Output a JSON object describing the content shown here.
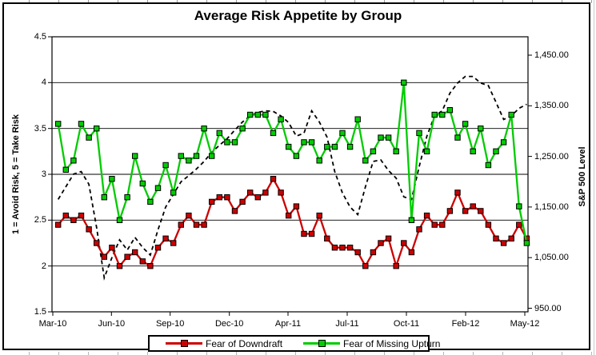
{
  "title": "Average Risk Appetite by Group",
  "left_axis": {
    "title": "1 = Avoid Risk, 5 = Take Risk",
    "tick_labels": [
      "4.5",
      "4",
      "3.5",
      "3",
      "2.5",
      "2",
      "1.5"
    ]
  },
  "right_axis": {
    "title": "S&P 500 Level",
    "tick_labels": [
      "1,450.00",
      "1,350.00",
      "1,250.00",
      "1,150.00",
      "1,050.00",
      "950.00"
    ]
  },
  "x_axis": {
    "tick_labels": [
      "Mar-10",
      "Jun-10",
      "Sep-10",
      "Dec-10",
      "Apr-11",
      "Jul-11",
      "Oct-11",
      "Feb-12",
      "May-12"
    ]
  },
  "legend": {
    "items": [
      {
        "label": "Fear of Downdraft",
        "color": "#CC0000"
      },
      {
        "label": "Fear of Missing Upturn",
        "color": "#00CC00"
      }
    ]
  },
  "colors": {
    "downdraft": "#CC0000",
    "upturn": "#00CC00",
    "sp500": "#000000",
    "grid": "#000000"
  },
  "chart_data": {
    "type": "line",
    "title": "Average Risk Appetite by Group",
    "x_tick_labels": [
      "Mar-10",
      "Jun-10",
      "Sep-10",
      "Dec-10",
      "Apr-11",
      "Jul-11",
      "Oct-11",
      "Feb-12",
      "May-12"
    ],
    "left_ylabel": "1 = Avoid Risk, 5 = Take Risk",
    "right_ylabel": "S&P 500 Level",
    "left_ylim": [
      1.5,
      4.5
    ],
    "right_ylim": [
      950,
      1450
    ],
    "grid": "horizontal",
    "legend_position": "bottom",
    "series": [
      {
        "name": "Fear of Downdraft",
        "axis": "left",
        "color": "#CC0000",
        "line_style": "solid",
        "marker": "square",
        "values": [
          2.45,
          2.55,
          2.5,
          2.55,
          2.4,
          2.25,
          2.1,
          2.2,
          2.0,
          2.1,
          2.15,
          2.05,
          2.0,
          2.2,
          2.3,
          2.25,
          2.45,
          2.55,
          2.45,
          2.45,
          2.7,
          2.75,
          2.75,
          2.6,
          2.7,
          2.8,
          2.75,
          2.8,
          2.95,
          2.8,
          2.55,
          2.65,
          2.35,
          2.35,
          2.55,
          2.3,
          2.2,
          2.2,
          2.2,
          2.15,
          2.0,
          2.15,
          2.25,
          2.3,
          2.0,
          2.25,
          2.15,
          2.4,
          2.55,
          2.45,
          2.45,
          2.6,
          2.8,
          2.6,
          2.65,
          2.6,
          2.45,
          2.3,
          2.25,
          2.3,
          2.45,
          2.3
        ]
      },
      {
        "name": "Fear of Missing Upturn",
        "axis": "left",
        "color": "#00CC00",
        "line_style": "solid",
        "marker": "square",
        "values": [
          3.55,
          3.05,
          3.15,
          3.55,
          3.4,
          3.5,
          2.75,
          2.95,
          2.5,
          2.75,
          3.2,
          2.9,
          2.7,
          2.85,
          3.1,
          2.8,
          3.2,
          3.15,
          3.2,
          3.5,
          3.2,
          3.45,
          3.35,
          3.35,
          3.5,
          3.65,
          3.65,
          3.65,
          3.45,
          3.6,
          3.3,
          3.2,
          3.35,
          3.35,
          3.15,
          3.3,
          3.3,
          3.45,
          3.3,
          3.6,
          3.15,
          3.25,
          3.4,
          3.4,
          3.25,
          4.0,
          2.5,
          3.45,
          3.25,
          3.65,
          3.65,
          3.7,
          3.4,
          3.55,
          3.25,
          3.5,
          3.1,
          3.25,
          3.35,
          3.65,
          2.65,
          2.25
        ]
      },
      {
        "name": "S&P 500",
        "axis": "right",
        "color": "#000000",
        "line_style": "dashed",
        "marker": "none",
        "values": [
          1165,
          1190,
          1215,
          1220,
          1195,
          1110,
          1010,
          1050,
          1085,
          1065,
          1090,
          1070,
          1055,
          1105,
          1150,
          1175,
          1200,
          1212,
          1225,
          1240,
          1258,
          1272,
          1285,
          1302,
          1318,
          1330,
          1337,
          1340,
          1339,
          1330,
          1317,
          1290,
          1296,
          1340,
          1318,
          1288,
          1220,
          1178,
          1150,
          1135,
          1190,
          1240,
          1243,
          1222,
          1207,
          1170,
          1165,
          1230,
          1290,
          1330,
          1340,
          1375,
          1395,
          1408,
          1408,
          1395,
          1390,
          1357,
          1323,
          1330,
          1345,
          1353
        ]
      }
    ]
  }
}
